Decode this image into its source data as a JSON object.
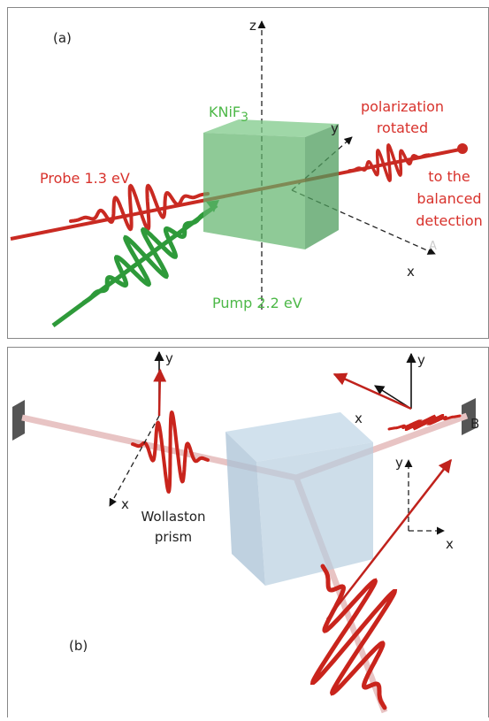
{
  "panel_a": {
    "label": "(a)",
    "axis_z": "z",
    "axis_y": "y",
    "axis_x": "x",
    "crystal": {
      "name": "KNiF",
      "subscript": "3"
    },
    "probe": "Probe 1.3 eV",
    "pump": "Pump 2.2 eV",
    "output": [
      "polarization",
      "rotated"
    ],
    "detection": [
      "to the",
      "balanced",
      "detection"
    ],
    "point": "A"
  },
  "panel_b": {
    "label": "(b)",
    "prism": [
      "Wollaston",
      "prism"
    ],
    "point": "B",
    "left_axes": {
      "y": "y",
      "x": "x"
    },
    "top_right_axes": {
      "y": "y",
      "x": "x"
    },
    "right_axes": {
      "y": "y",
      "x": "x"
    }
  }
}
